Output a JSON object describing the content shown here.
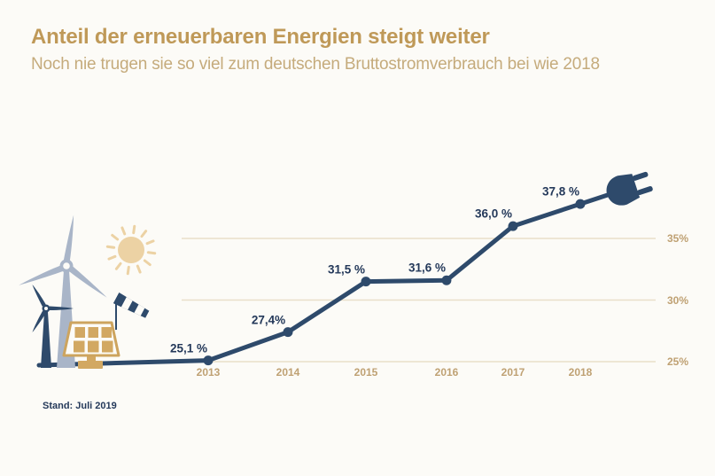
{
  "header": {
    "title": "Anteil der erneuerbaren Energien steigt weiter",
    "subtitle": "Noch nie trugen sie so viel zum deutschen Bruttostromverbrauch bei wie 2018"
  },
  "footnote": "Stand: Juli 2019",
  "chart_data": {
    "type": "line",
    "title": "Anteil der erneuerbaren Energien steigt weiter",
    "subtitle": "Noch nie trugen sie so viel zum deutschen Bruttostromverbrauch bei wie 2018",
    "categories": [
      "2013",
      "2014",
      "2015",
      "2016",
      "2017",
      "2018"
    ],
    "values": [
      25.1,
      27.4,
      31.5,
      31.6,
      36.0,
      37.8
    ],
    "value_labels": [
      "25,1 %",
      "27,4%",
      "31,5 %",
      "31,6 %",
      "36,0 %",
      "37,8 %"
    ],
    "unit": "%",
    "y_ticks": [
      25,
      30,
      35
    ],
    "y_tick_labels": [
      "25%",
      "30%",
      "35%"
    ],
    "ylim": [
      24.5,
      39.5
    ],
    "grid": "horizontal",
    "legend": "none",
    "y_axis_position": "right",
    "line_end_icon": "power-plug"
  },
  "icons": {
    "illustration": [
      "wind-turbine-large-icon",
      "wind-turbine-small-icon",
      "sun-icon",
      "windsock-icon",
      "solar-panel-icon",
      "power-plug-icon"
    ]
  },
  "colors": {
    "background": "#fcfbf7",
    "title": "#bf9958",
    "subtitle": "#c5ab7c",
    "line": "#2e4a6b",
    "data_label": "#24395a",
    "axis_label": "#bfa173",
    "gridline": "#e9dfc9",
    "illustration_gold": "#d2a862",
    "panel_frame": "#cda45e",
    "illustration_light_blue": "#a9b5c8",
    "sun": "#ecd2a4",
    "footnote": "#24395a"
  }
}
